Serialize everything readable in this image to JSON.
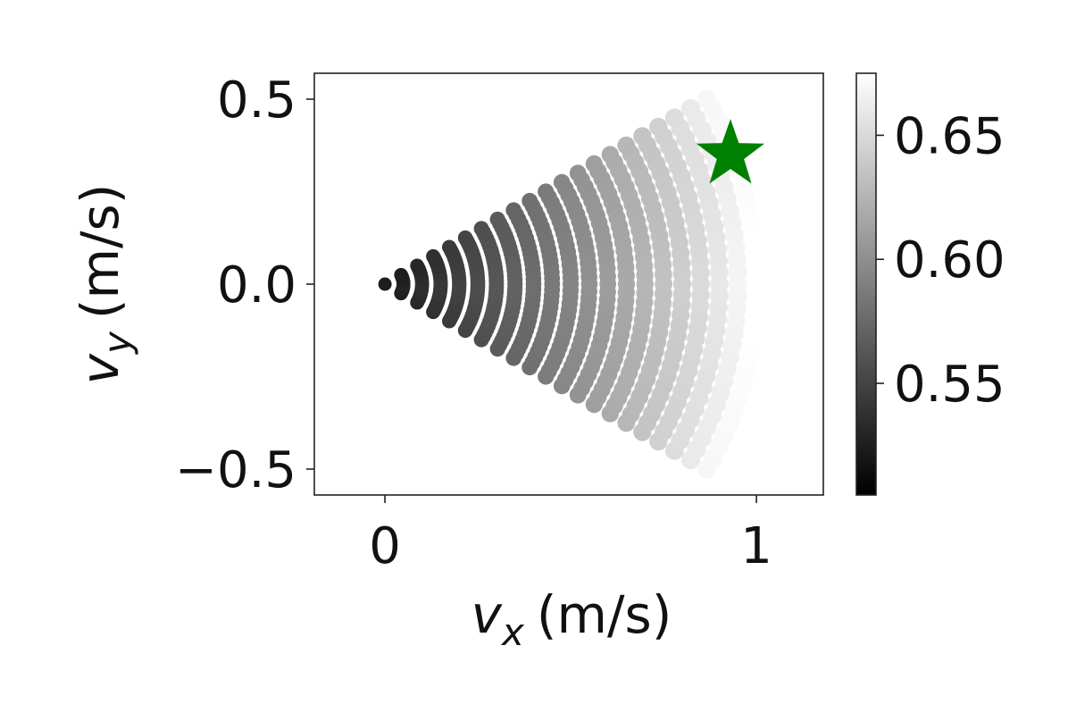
{
  "chart_data": {
    "type": "scatter",
    "title": "",
    "xlabel": "v_x (m/s)",
    "ylabel": "v_y (m/s)",
    "xlabel_parts": {
      "symbol": "v",
      "sub": "x",
      "unit": "(m/s)"
    },
    "ylabel_parts": {
      "symbol": "v",
      "sub": "y",
      "unit": "(m/s)"
    },
    "xlim": [
      -0.19,
      1.18
    ],
    "ylim": [
      -0.57,
      0.57
    ],
    "xticks": [
      0,
      1
    ],
    "xtick_labels": [
      "0",
      "1"
    ],
    "yticks": [
      -0.5,
      0.0,
      0.5
    ],
    "ytick_labels": [
      "−0.5",
      "0.0",
      "0.5"
    ],
    "grid": false,
    "series": [
      {
        "marker": "circle",
        "colormap": "gray",
        "pattern": "fan of arcs: radii 0 to 1 m/s, angles -30° to +30°",
        "radii": [
          0,
          0.05,
          0.1,
          0.15,
          0.2,
          0.25,
          0.3,
          0.35,
          0.4,
          0.45,
          0.5,
          0.55,
          0.6,
          0.65,
          0.7,
          0.75,
          0.8,
          0.85,
          0.9,
          0.95,
          1.0
        ],
        "angle_range_deg": [
          -30,
          30
        ],
        "angle_steps": 31,
        "color_min": 0.505,
        "color_max": 0.675
      }
    ],
    "highlight_point": {
      "x": 0.93,
      "y": 0.35,
      "marker": "star",
      "color": "#008000"
    },
    "colorbar": {
      "min": 0.505,
      "max": 0.675,
      "ticks": [
        0.55,
        0.6,
        0.65
      ],
      "tick_labels": [
        "0.55",
        "0.60",
        "0.65"
      ],
      "colormap": "gray"
    }
  }
}
